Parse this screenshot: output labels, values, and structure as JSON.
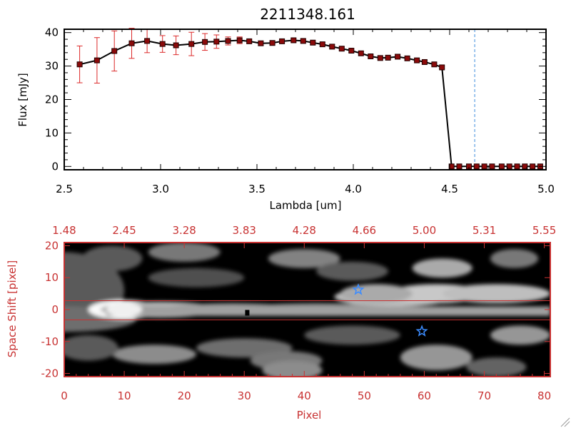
{
  "colors": {
    "spectrum_line": "#000000",
    "marker_fill": "#8b0a0a",
    "error_bar": "#dc2828",
    "lower_axis": "#c83232",
    "reference_line": "#3c8cdc",
    "star": "#3c8cff",
    "aperture_lines": "#c83232"
  },
  "chart_data": [
    {
      "type": "line",
      "title": "2211348.161",
      "xlabel": "Lambda [um]",
      "ylabel": "Flux [mJy]",
      "xlim": [
        2.5,
        5.0
      ],
      "ylim": [
        -1,
        41
      ],
      "xticks": [
        "2.5",
        "3.0",
        "3.5",
        "4.0",
        "4.5",
        "5.0"
      ],
      "yticks": [
        "0",
        "10",
        "20",
        "30",
        "40"
      ],
      "reference_line_x": 4.63,
      "series": [
        {
          "x": [
            2.58,
            2.67,
            2.76,
            2.85,
            2.93,
            3.01,
            3.08,
            3.16,
            3.23,
            3.29,
            3.35,
            3.41,
            3.46,
            3.52,
            3.58,
            3.63,
            3.69,
            3.74,
            3.79,
            3.84,
            3.89,
            3.94,
            3.99,
            4.04,
            4.09,
            4.14,
            4.18,
            4.23,
            4.28,
            4.33,
            4.37,
            4.42,
            4.46,
            4.51,
            4.55,
            4.6,
            4.64,
            4.68,
            4.72,
            4.77,
            4.81,
            4.85,
            4.89,
            4.93,
            4.97
          ],
          "y": [
            30.5,
            31.7,
            34.5,
            36.8,
            37.5,
            36.6,
            36.2,
            36.6,
            37.2,
            37.3,
            37.5,
            37.7,
            37.4,
            36.8,
            36.9,
            37.4,
            37.7,
            37.5,
            37.0,
            36.5,
            35.8,
            35.2,
            34.6,
            33.8,
            32.9,
            32.4,
            32.5,
            32.8,
            32.3,
            31.7,
            31.2,
            30.5,
            29.6,
            0,
            0,
            0,
            0,
            0,
            0,
            0,
            0,
            0,
            0,
            0,
            0
          ],
          "yerr": [
            5.5,
            6.8,
            6.0,
            4.5,
            3.5,
            2.5,
            2.8,
            3.5,
            2.5,
            2.0,
            1.2,
            1.0,
            0.6,
            0.6,
            0.6,
            0.6,
            0.5,
            0.5,
            0.5,
            0.5,
            0.5,
            0.5,
            0.5,
            0.5,
            0.4,
            0.4,
            0.4,
            0.4,
            0.4,
            0.4,
            0.4,
            0.4,
            0.4,
            0,
            0,
            0,
            0,
            0,
            0,
            0,
            0,
            0,
            0,
            0,
            0
          ]
        }
      ]
    },
    {
      "type": "heatmap",
      "xlabel": "Pixel",
      "ylabel": "Space Shift [pixel]",
      "xlim": [
        0,
        81
      ],
      "ylim": [
        -21,
        21
      ],
      "xticks": [
        "0",
        "10",
        "20",
        "30",
        "40",
        "50",
        "60",
        "70",
        "80"
      ],
      "yticks": [
        "-20",
        "-10",
        "0",
        "10",
        "20"
      ],
      "top_ticks": [
        "1.48",
        "2.45",
        "3.28",
        "3.83",
        "4.28",
        "4.66",
        "5.00",
        "5.31",
        "5.55"
      ],
      "aperture_lines_y": [
        2.8,
        -3.2
      ],
      "center_marker": {
        "x": 30.5,
        "y": -1.0
      },
      "stars": [
        {
          "x": 49.0,
          "y": 6.2
        },
        {
          "x": 59.6,
          "y": -6.8
        }
      ]
    }
  ]
}
